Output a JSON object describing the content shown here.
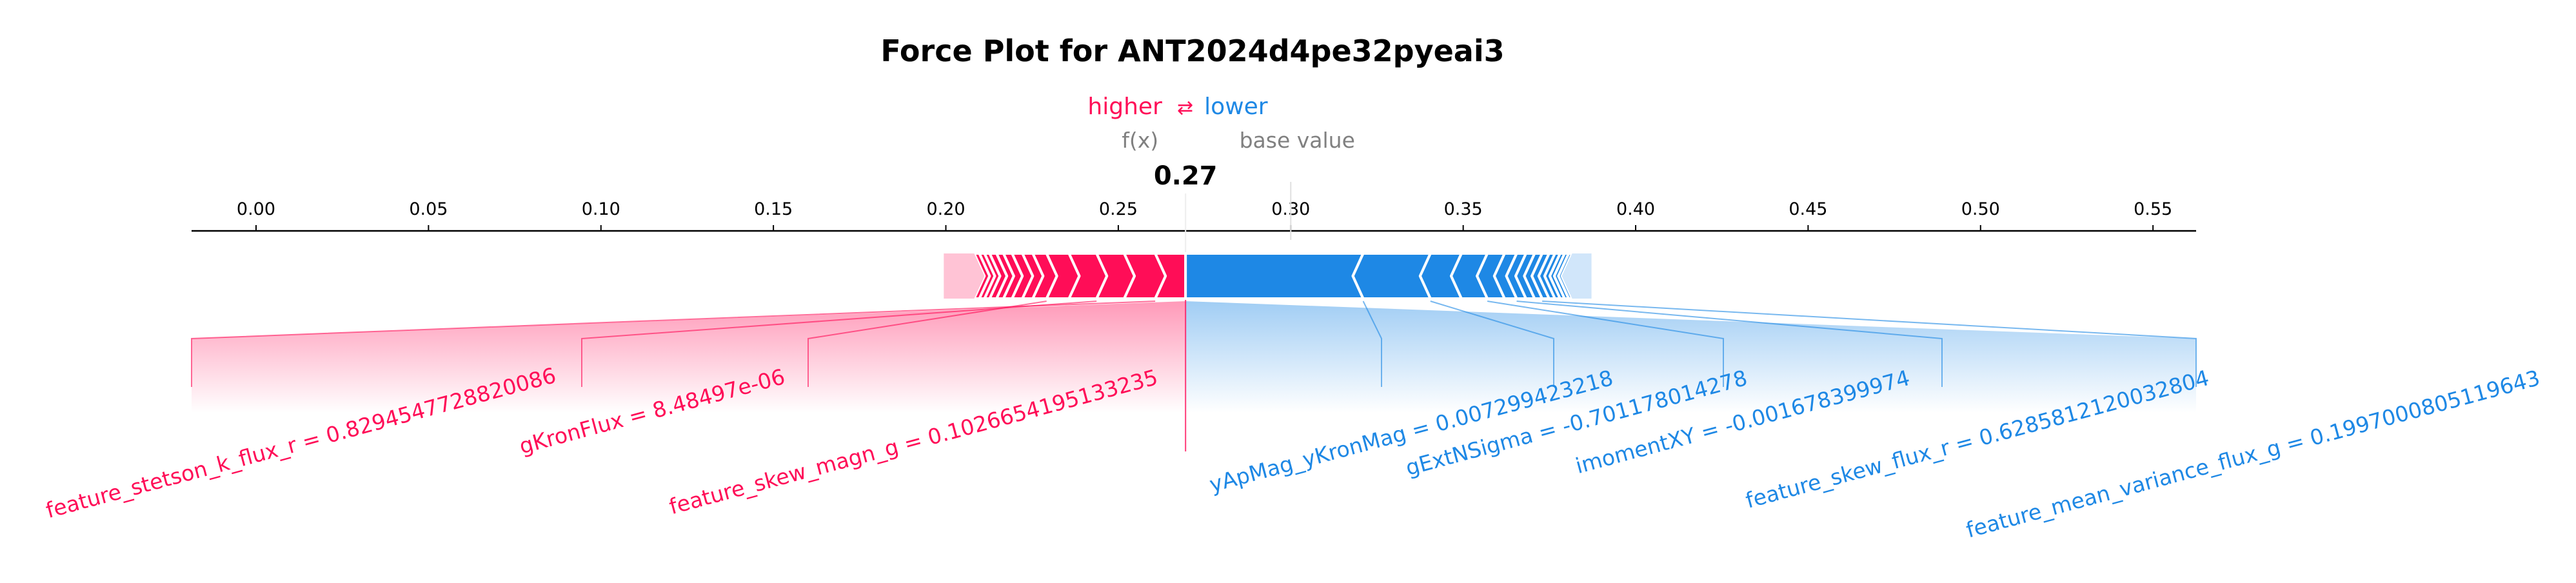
{
  "chart_data": {
    "type": "force",
    "title": "Force Plot for ANT2024d4pe32pyeai3",
    "legend": {
      "higher": "higher",
      "lower": "lower",
      "arrow": "⇄"
    },
    "output_label": "f(x)",
    "output_value_label": "0.27",
    "output_value": 0.2695,
    "base_value_label": "base value",
    "base_value": 0.3,
    "xlim": [
      -0.0187,
      0.5625
    ],
    "ticks": [
      0.0,
      0.05,
      0.1,
      0.15,
      0.2,
      0.25,
      0.3,
      0.35,
      0.4,
      0.45,
      0.5,
      0.55
    ],
    "tick_labels": [
      "0.00",
      "0.05",
      "0.10",
      "0.15",
      "0.20",
      "0.25",
      "0.30",
      "0.35",
      "0.40",
      "0.45",
      "0.50",
      "0.55"
    ],
    "colors": {
      "positive": "#ff0d57",
      "negative": "#1e88e5",
      "positive_light": "#ffc3d5",
      "negative_light": "#d1e6fa"
    },
    "positive_boundaries": [
      0.2695,
      0.2607,
      0.2517,
      0.2437,
      0.2357,
      0.2292,
      0.2252,
      0.2222,
      0.2192,
      0.2167,
      0.2147,
      0.2127,
      0.2112,
      0.2097,
      0.2082,
      0.1994
    ],
    "negative_boundaries": [
      0.2695,
      0.321,
      0.3405,
      0.3495,
      0.357,
      0.362,
      0.3655,
      0.3682,
      0.3707,
      0.3729,
      0.3749,
      0.3766,
      0.3781,
      0.3794,
      0.3806,
      0.3816,
      0.3872
    ],
    "features_positive": [
      {
        "label": "feature_stetson_k_flux_r = 0.8294547728820086"
      },
      {
        "label": "gKronFlux = 8.48497e-06"
      },
      {
        "label": "feature_skew_magn_g = 0.1026654195133235"
      }
    ],
    "features_negative": [
      {
        "label": "yApMag_yKronMag = 0.007299423218"
      },
      {
        "label": "gExtNSigma = -0.701178014278"
      },
      {
        "label": "imomentXY = -0.001678399974"
      },
      {
        "label": "feature_skew_flux_r = 0.6285812120032804"
      },
      {
        "label": "feature_mean_variance_flux_g = 0.1997000805119643"
      }
    ]
  }
}
